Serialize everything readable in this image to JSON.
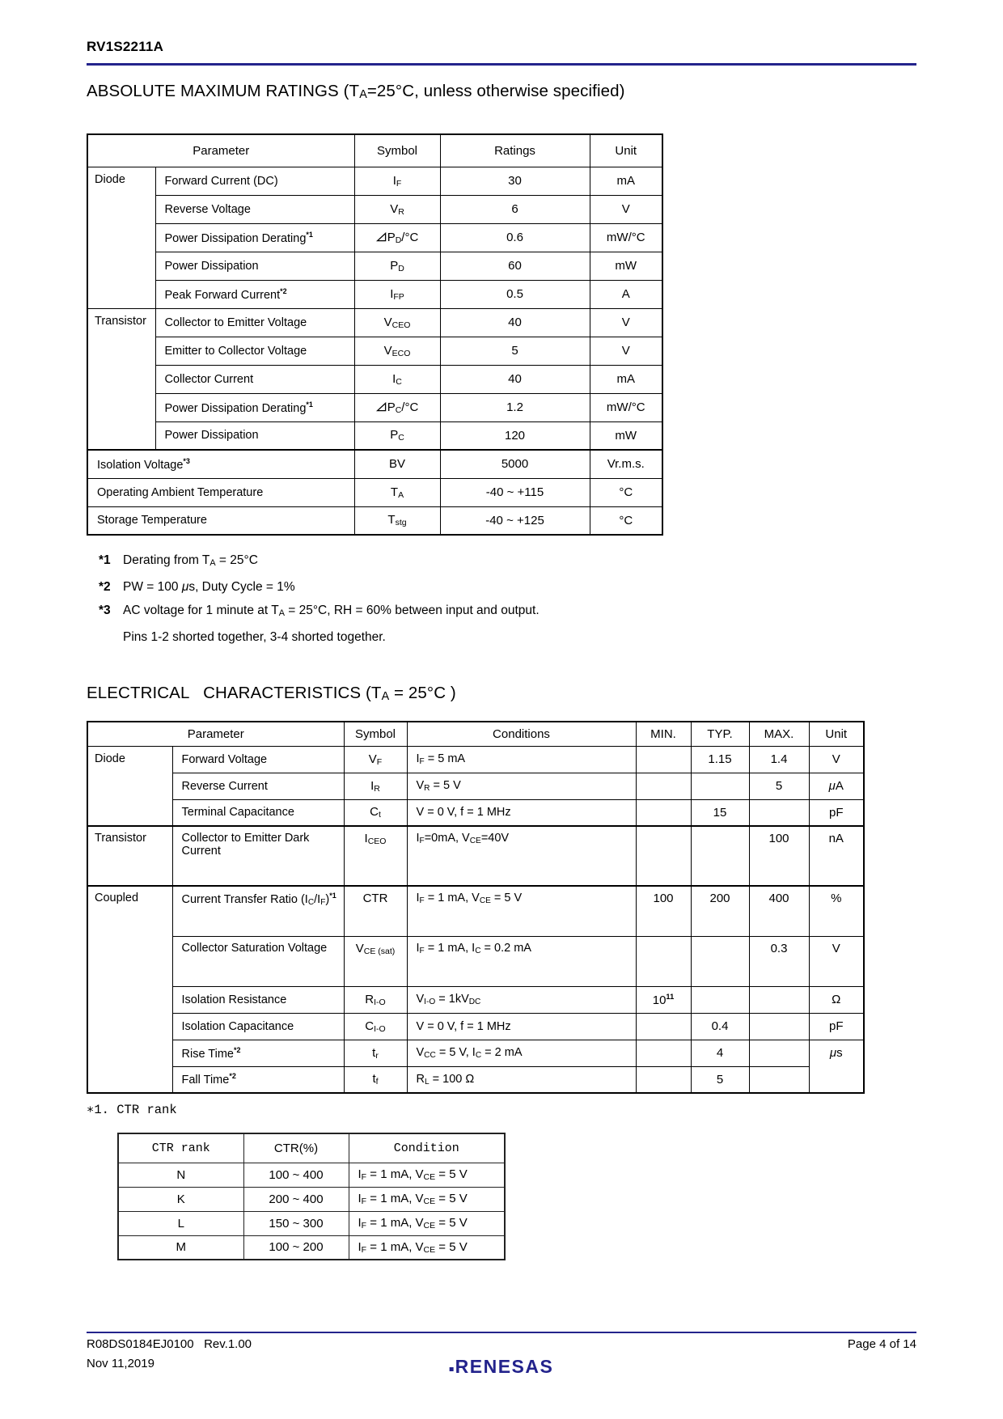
{
  "header": {
    "product": "RV1S2211A"
  },
  "colors": {
    "accent_navy": "#23238C"
  },
  "amr": {
    "title_html": "ABSOLUTE MAXIMUM RATINGS (T<sub>A</sub>=25°C, unless otherwise specified)",
    "col_headers": {
      "parameter": "Parameter",
      "symbol": "Symbol",
      "ratings": "Ratings",
      "unit": "Unit"
    },
    "rows": [
      {
        "category": "Diode",
        "param_html": "Forward Current (DC)",
        "symbol_html": "I<sub>F</sub>",
        "rating": "30",
        "unit": "mA"
      },
      {
        "param_html": "Reverse Voltage",
        "symbol_html": "V<sub>R</sub>",
        "rating": "6",
        "unit": "V"
      },
      {
        "param_html": "Power Dissipation Derating<sup>*1</sup>",
        "symbol_html": "<svg class='tri' viewBox='0 0 13 12' width='13' height='12'><path d='M11.6 1.4 L11.6 10.6 L1.6 10.6 Z' fill='none' stroke='#000' stroke-width='1.3'/></svg>P<sub>D</sub>/°C",
        "rating": "0.6",
        "unit": "mW/°C"
      },
      {
        "param_html": "Power Dissipation",
        "symbol_html": "P<sub>D</sub>",
        "rating": "60",
        "unit": "mW"
      },
      {
        "param_html": "Peak Forward Current<sup>*2</sup>",
        "symbol_html": "I<sub>FP</sub>",
        "rating": "0.5",
        "unit": "A"
      },
      {
        "category": "Transistor",
        "param_html": "Collector to Emitter Voltage",
        "symbol_html": "V<sub>CEO</sub>",
        "rating": "40",
        "unit": "V"
      },
      {
        "param_html": "Emitter to Collector Voltage",
        "symbol_html": "V<sub>ECO</sub>",
        "rating": "5",
        "unit": "V"
      },
      {
        "param_html": "Collector Current",
        "symbol_html": "I<sub>C</sub>",
        "rating": "40",
        "unit": "mA"
      },
      {
        "param_html": "Power Dissipation Derating<sup>*1</sup>",
        "symbol_html": "<svg class='tri' viewBox='0 0 13 12' width='13' height='12'><path d='M11.6 1.4 L11.6 10.6 L1.6 10.6 Z' fill='none' stroke='#000' stroke-width='1.3'/></svg>P<sub>C</sub>/°C",
        "rating": "1.2",
        "unit": "mW/°C"
      },
      {
        "param_html": "Power Dissipation",
        "symbol_html": "P<sub>C</sub>",
        "rating": "120",
        "unit": "mW"
      },
      {
        "param_html": "Isolation Voltage<sup>*3</sup>",
        "symbol_html": "BV",
        "rating": "5000",
        "unit": "Vr.m.s."
      },
      {
        "param_html": "Operating Ambient Temperature",
        "symbol_html": "T<sub>A</sub>",
        "rating": "-40 ~ +115",
        "unit": "°C"
      },
      {
        "param_html": "Storage Temperature",
        "symbol_html": "T<sub>stg</sub>",
        "rating": "-40 ~ +125",
        "unit": "°C"
      }
    ],
    "notes": [
      {
        "label": "*1",
        "text_html": "Derating from T<sub>A</sub> = 25°C"
      },
      {
        "label": "*2",
        "text_html": "PW = 100 <i>μ</i>s, Duty Cycle = 1%"
      },
      {
        "label": "*3",
        "text_html": "AC voltage for 1 minute at T<sub>A</sub> = 25°C, RH = 60% between input and output."
      },
      {
        "label": "",
        "text_html": "Pins 1-2 shorted together, 3-4 shorted together."
      }
    ]
  },
  "ec": {
    "title_html": "ELECTRICAL   CHARACTERISTICS (T<sub>A</sub> = 25°C )",
    "col_headers": {
      "parameter": "Parameter",
      "symbol": "Symbol",
      "conditions": "Conditions",
      "min": "MIN.",
      "typ": "TYP.",
      "max": "MAX.",
      "unit": "Unit"
    },
    "rows": [
      {
        "category": "Diode",
        "param_html": "Forward Voltage",
        "symbol_html": "V<sub>F</sub>",
        "cond_html": "I<sub>F</sub> = 5 mA",
        "min_html": "",
        "typ_html": "1.15",
        "max_html": "1.4",
        "unit_html": "V"
      },
      {
        "param_html": "Reverse Current",
        "symbol_html": "I<sub>R</sub>",
        "cond_html": "V<sub>R</sub> = 5 V",
        "min_html": "",
        "typ_html": "",
        "max_html": "5",
        "unit_html": "<i>μ</i>A"
      },
      {
        "param_html": "Terminal Capacitance",
        "symbol_html": "C<sub>t</sub>",
        "cond_html": "V = 0 V, f = 1 MHz",
        "min_html": "",
        "typ_html": "15",
        "max_html": "",
        "unit_html": "pF"
      },
      {
        "category": "Transistor",
        "param_html": "Collector to Emitter Dark Current",
        "symbol_html": "I<sub>CEO</sub>",
        "cond_html": "I<sub>F</sub>=0mA, V<sub>CE</sub>=40V",
        "min_html": "",
        "typ_html": "",
        "max_html": "100",
        "unit_html": "nA"
      },
      {
        "category": "Coupled",
        "param_html": "Current Transfer Ratio (I<sub>C</sub>/I<sub>F</sub>)<sup>*1</sup>",
        "symbol_html": "CTR",
        "cond_html": "I<sub>F</sub> = 1 mA, V<sub>CE</sub> = 5 V",
        "min_html": "100",
        "typ_html": "200",
        "max_html": "400",
        "unit_html": "%"
      },
      {
        "param_html": "Collector Saturation Voltage",
        "symbol_html": "V<sub>CE (sat)</sub>",
        "cond_html": "I<sub>F</sub> = 1 mA, I<sub>C</sub> = 0.2 mA",
        "min_html": "",
        "typ_html": "",
        "max_html": "0.3",
        "unit_html": "V"
      },
      {
        "param_html": "Isolation Resistance",
        "symbol_html": "R<sub>I-O</sub>",
        "cond_html": "V<sub>I-O</sub> = 1kV<sub>DC</sub>",
        "min_html": "10<sup>11</sup>",
        "typ_html": "",
        "max_html": "",
        "unit_html": "Ω"
      },
      {
        "param_html": "Isolation Capacitance",
        "symbol_html": "C<sub>I-O</sub>",
        "cond_html": "V = 0 V, f = 1 MHz",
        "min_html": "",
        "typ_html": "0.4",
        "max_html": "",
        "unit_html": "pF"
      },
      {
        "param_html": "Rise Time<sup>*2</sup>",
        "symbol_html": "t<sub>r</sub>",
        "cond_html": "V<sub>CC</sub> = 5 V, I<sub>C</sub> = 2 mA",
        "min_html": "",
        "typ_html": "4",
        "max_html": "",
        "unit_html": "<i>μ</i>s"
      },
      {
        "param_html": "Fall Time<sup>*2</sup>",
        "symbol_html": "t<sub>f</sub>",
        "cond_html": "R<sub>L</sub> = 100 Ω",
        "min_html": "",
        "typ_html": "5",
        "max_html": ""
      }
    ]
  },
  "ctr_note": "∗1. CTR rank",
  "ctr": {
    "col_headers": {
      "rank": "CTR rank",
      "ctr": "CTR(%)",
      "condition": "Condition"
    },
    "rows": [
      {
        "rank": "N",
        "range": "100 ~ 400",
        "condition_html": "I<sub>F</sub> = 1 mA, V<sub>CE</sub> = 5 V"
      },
      {
        "rank": "K",
        "range": "200 ~ 400",
        "condition_html": "I<sub>F</sub> = 1 mA, V<sub>CE</sub> = 5 V"
      },
      {
        "rank": "L",
        "range": "150 ~ 300",
        "condition_html": "I<sub>F</sub> = 1 mA, V<sub>CE</sub> = 5 V"
      },
      {
        "rank": "M",
        "range": "100 ~ 200",
        "condition_html": "I<sub>F</sub> = 1 mA, V<sub>CE</sub> = 5 V"
      }
    ]
  },
  "footer": {
    "doc_number": "R08DS0184EJ0100   Rev.1.00",
    "date": "Nov 11,2019",
    "page": "Page 4 of 14",
    "logo": "RENESAS"
  }
}
